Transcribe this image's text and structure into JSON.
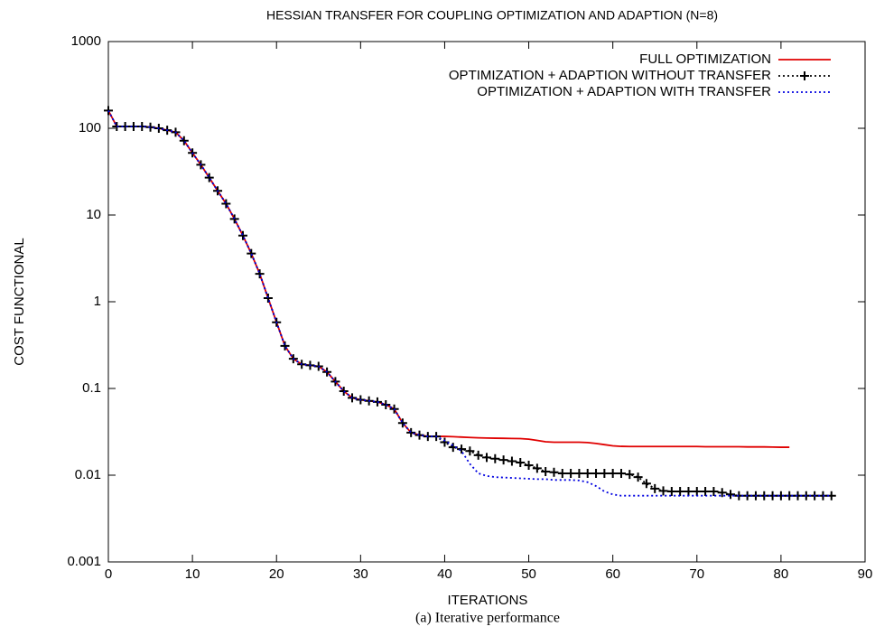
{
  "chart_data": {
    "type": "line",
    "title": "HESSIAN TRANSFER FOR COUPLING OPTIMIZATION AND ADAPTION (N=8)",
    "xlabel": "ITERATIONS",
    "ylabel": "COST FUNCTIONAL",
    "caption": "(a)  Iterative performance",
    "x": [
      0,
      1,
      2,
      3,
      4,
      5,
      6,
      7,
      8,
      9,
      10,
      11,
      12,
      13,
      14,
      15,
      16,
      17,
      18,
      19,
      20,
      21,
      22,
      23,
      24,
      25,
      26,
      27,
      28,
      29,
      30,
      31,
      32,
      33,
      34,
      35,
      36,
      37,
      38,
      39,
      40,
      41,
      42,
      43,
      44,
      45,
      46,
      47,
      48,
      49,
      50,
      51,
      52,
      53,
      54,
      55,
      56,
      57,
      58,
      59,
      60,
      61,
      62,
      63,
      64,
      65,
      66,
      67,
      68,
      69,
      70,
      71,
      72,
      73,
      74,
      75,
      76,
      77,
      78,
      79,
      80,
      81,
      82,
      83,
      84,
      85,
      86
    ],
    "series": [
      {
        "name": "FULL OPTIMIZATION",
        "color": "#e00000",
        "dash": "none",
        "markers": false,
        "values": [
          160,
          105,
          105,
          105,
          105,
          103,
          100,
          95,
          90,
          72,
          52,
          38,
          27,
          19,
          13.5,
          9,
          5.8,
          3.6,
          2.1,
          1.1,
          0.58,
          0.31,
          0.22,
          0.19,
          0.185,
          0.18,
          0.155,
          0.12,
          0.093,
          0.078,
          0.074,
          0.072,
          0.07,
          0.065,
          0.058,
          0.04,
          0.031,
          0.029,
          0.028,
          0.028,
          0.028,
          0.0278,
          0.0275,
          0.0272,
          0.027,
          0.0268,
          0.0267,
          0.0266,
          0.0265,
          0.0264,
          0.026,
          0.0252,
          0.0243,
          0.024,
          0.024,
          0.024,
          0.024,
          0.0238,
          0.0232,
          0.0225,
          0.0218,
          0.0215,
          0.0214,
          0.0214,
          0.0214,
          0.0214,
          0.0214,
          0.0214,
          0.0214,
          0.0214,
          0.0214,
          0.0213,
          0.0213,
          0.0213,
          0.0213,
          0.0213,
          0.0212,
          0.0212,
          0.0212,
          0.0211,
          0.021,
          0.021,
          null,
          null,
          null,
          null,
          null
        ]
      },
      {
        "name": "OPTIMIZATION + ADAPTION WITHOUT TRANSFER",
        "color": "#000000",
        "dash": "2 3",
        "markers": true,
        "values": [
          160,
          105,
          105,
          105,
          105,
          103,
          100,
          95,
          90,
          72,
          52,
          38,
          27,
          19,
          13.5,
          9,
          5.8,
          3.6,
          2.1,
          1.1,
          0.58,
          0.31,
          0.22,
          0.19,
          0.185,
          0.18,
          0.155,
          0.12,
          0.093,
          0.078,
          0.074,
          0.072,
          0.07,
          0.065,
          0.058,
          0.04,
          0.031,
          0.029,
          0.028,
          0.028,
          0.024,
          0.021,
          0.02,
          0.019,
          0.017,
          0.016,
          0.0155,
          0.015,
          0.0145,
          0.014,
          0.013,
          0.012,
          0.011,
          0.0108,
          0.0105,
          0.0105,
          0.0105,
          0.0105,
          0.0105,
          0.0105,
          0.0105,
          0.0105,
          0.0102,
          0.0095,
          0.008,
          0.007,
          0.0066,
          0.0065,
          0.0065,
          0.0065,
          0.0065,
          0.0065,
          0.0065,
          0.0063,
          0.006,
          0.0058,
          0.0058,
          0.0058,
          0.0058,
          0.0058,
          0.0058,
          0.0058,
          0.0058,
          0.0058,
          0.0058,
          0.0058,
          0.0058
        ]
      },
      {
        "name": "OPTIMIZATION + ADAPTION WITH TRANSFER",
        "color": "#0000e0",
        "dash": "2 3",
        "markers": false,
        "values": [
          160,
          105,
          105,
          105,
          105,
          103,
          100,
          95,
          90,
          72,
          52,
          38,
          27,
          19,
          13.5,
          9,
          5.8,
          3.6,
          2.1,
          1.1,
          0.58,
          0.31,
          0.22,
          0.19,
          0.185,
          0.18,
          0.155,
          0.12,
          0.093,
          0.078,
          0.074,
          0.072,
          0.07,
          0.065,
          0.058,
          0.04,
          0.031,
          0.029,
          0.028,
          0.028,
          0.025,
          0.022,
          0.019,
          0.0135,
          0.0105,
          0.0098,
          0.0095,
          0.0094,
          0.0093,
          0.0092,
          0.0091,
          0.009,
          0.009,
          0.0088,
          0.0088,
          0.0088,
          0.0087,
          0.0083,
          0.0075,
          0.0065,
          0.006,
          0.0058,
          0.0058,
          0.0058,
          0.0058,
          0.0058,
          0.0058,
          0.0058,
          0.0058,
          0.0058,
          0.0058,
          0.0058,
          0.0058,
          0.0058,
          0.0058,
          0.0058,
          0.0058,
          0.0058,
          0.0058,
          0.0058,
          0.0058,
          0.0058,
          0.0058,
          0.0058,
          0.0058,
          0.0058,
          0.0058
        ]
      }
    ],
    "xlim": [
      0,
      90
    ],
    "xticks": [
      0,
      10,
      20,
      30,
      40,
      50,
      60,
      70,
      80,
      90
    ],
    "ylim": [
      0.001,
      1000
    ],
    "yticks": [
      0.001,
      0.01,
      0.1,
      1,
      10,
      100,
      1000
    ],
    "ylog": true,
    "grid": false,
    "legend": "top-right"
  }
}
